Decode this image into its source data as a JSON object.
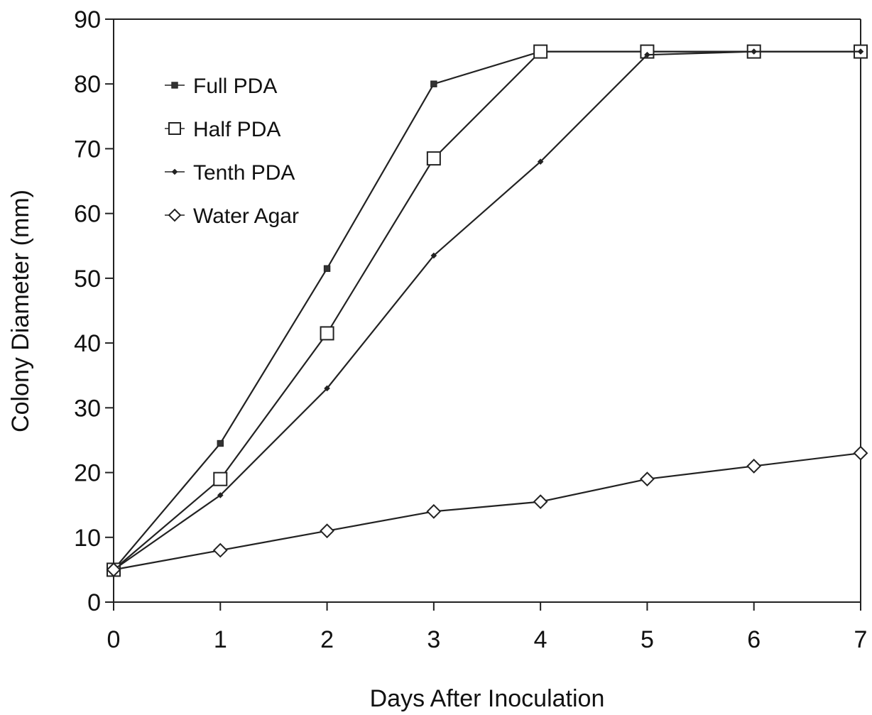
{
  "chart_data": {
    "type": "line",
    "xlabel": "Days After Inoculation",
    "ylabel": "Colony Diameter (mm)",
    "x": [
      0,
      1,
      2,
      3,
      4,
      5,
      6,
      7
    ],
    "xlim": [
      0,
      7
    ],
    "ylim": [
      0,
      90
    ],
    "xticks": [
      "0",
      "1",
      "2",
      "3",
      "4",
      "5",
      "6",
      "7"
    ],
    "yticks": [
      "0",
      "10",
      "20",
      "30",
      "40",
      "50",
      "60",
      "70",
      "80",
      "90"
    ],
    "grid": false,
    "legend_position": "top-left",
    "series": [
      {
        "name": "Full PDA",
        "marker": "filled-square",
        "values": [
          5,
          24.5,
          51.5,
          80,
          85,
          85,
          85,
          85
        ]
      },
      {
        "name": "Half PDA",
        "marker": "open-square",
        "values": [
          5,
          19,
          41.5,
          68.5,
          85,
          85,
          85,
          85
        ]
      },
      {
        "name": "Tenth PDA",
        "marker": "filled-diamond",
        "values": [
          5,
          16.5,
          33,
          53.5,
          68,
          84.5,
          85,
          85
        ]
      },
      {
        "name": "Water Agar",
        "marker": "open-diamond",
        "values": [
          5,
          8,
          11,
          14,
          15.5,
          19,
          21,
          23
        ]
      }
    ]
  }
}
